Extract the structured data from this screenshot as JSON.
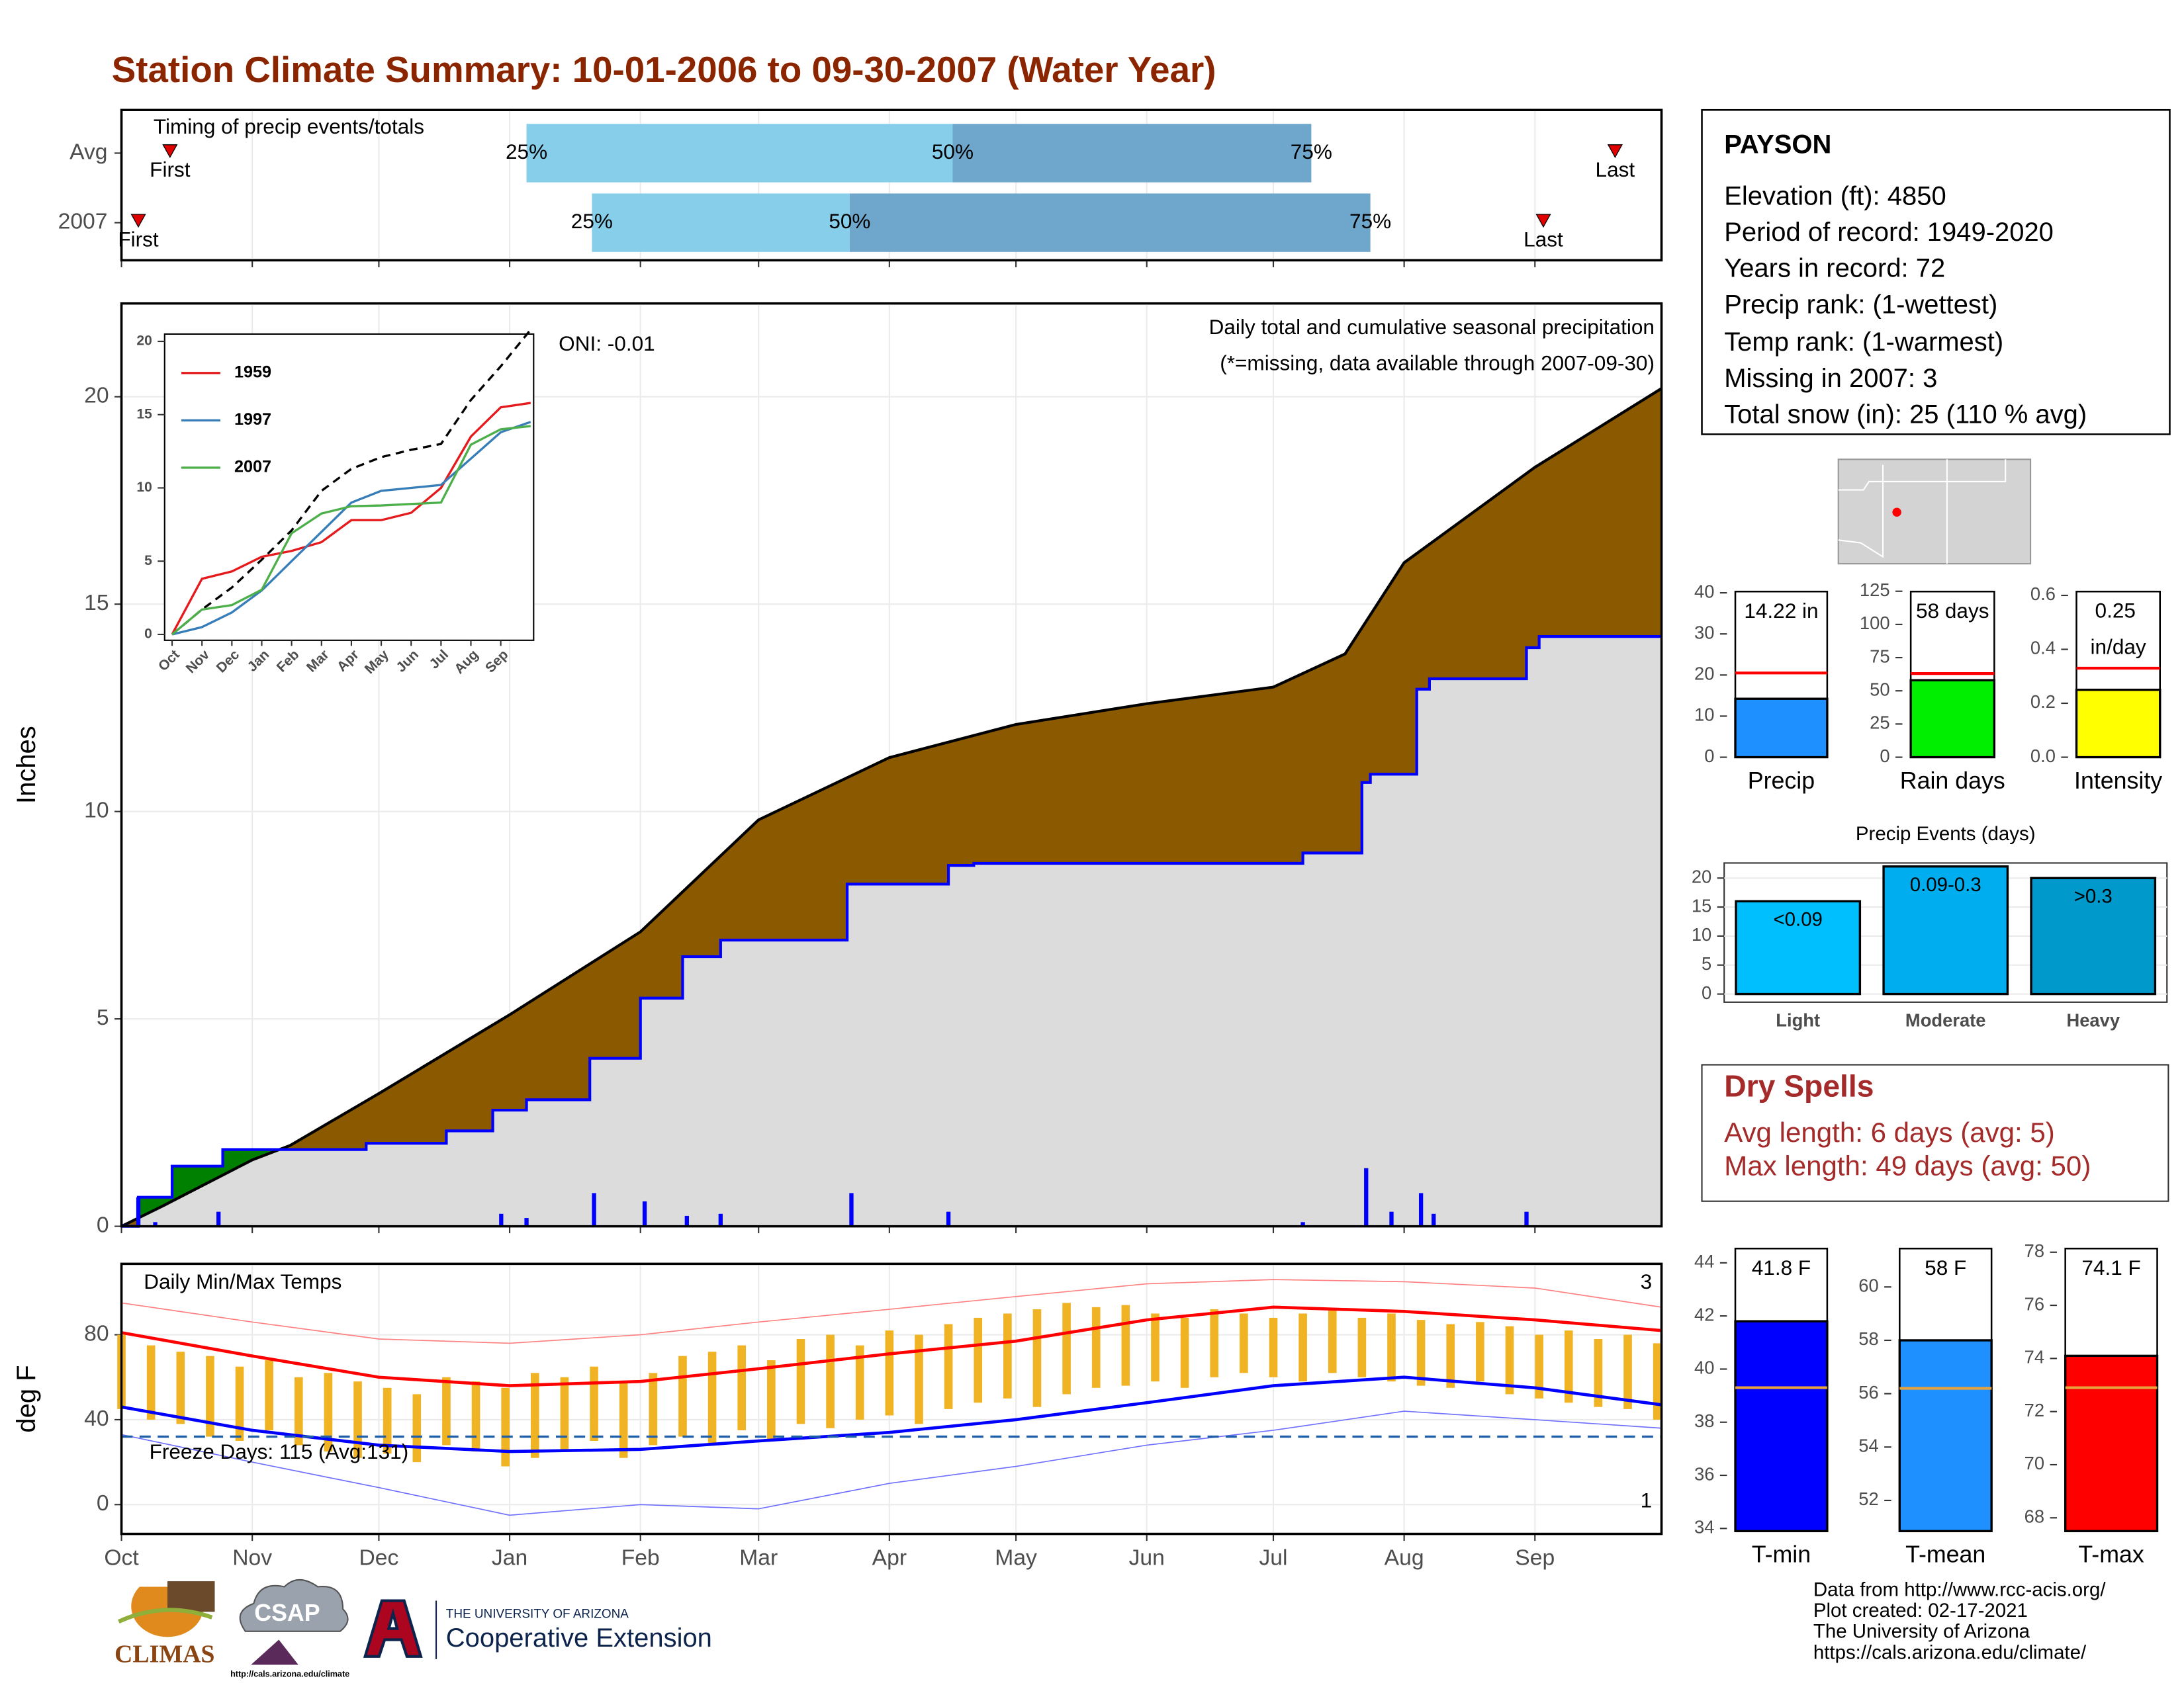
{
  "title": "Station Climate Summary: 10-01-2006 to 09-30-2007 (Water Year)",
  "chart_data": [
    {
      "type": "timing",
      "title": "Timing of precip events/totals",
      "categories": [
        "Avg",
        "2007"
      ],
      "xlim": [
        0,
        365
      ],
      "first": [
        11.5,
        4
      ],
      "q25": [
        96,
        111.5
      ],
      "q50": [
        197,
        172.6
      ],
      "q75": [
        282,
        296
      ],
      "last": [
        354,
        337
      ],
      "first_label": "First",
      "last_label": "Last",
      "quartile_labels": [
        "25%",
        "50%",
        "75%"
      ],
      "colors": [
        "#87ceeb",
        "#6fa6cc"
      ],
      "marker_color": "#e00000"
    },
    {
      "type": "area",
      "ylabel": "Inches",
      "xlim": [
        0,
        365
      ],
      "ylim": [
        0,
        22.25
      ],
      "yticks": [
        0,
        5,
        10,
        15,
        20
      ],
      "grid": true,
      "annotations": [
        "ONI: -0.01",
        "Daily total and cumulative seasonal precipitation",
        "(*=missing, data available through 2007-09-30)"
      ],
      "cumulative_avg": {
        "color": "#000000",
        "fill": "#8b5a00",
        "x": [
          0,
          10,
          31,
          40,
          61,
          92,
          123,
          151,
          182,
          212,
          243,
          273,
          290,
          304,
          335,
          365
        ],
        "values": [
          0,
          0.5,
          1.6,
          1.95,
          3.2,
          5.1,
          7.1,
          9.8,
          11.3,
          12.1,
          12.6,
          13.0,
          13.8,
          16.0,
          18.3,
          20.2
        ]
      },
      "cumulative_2007": {
        "color": "#0000ff",
        "fill": "#dcdcdc",
        "above_fill": "#008000",
        "x": [
          0,
          4,
          12,
          24,
          58,
          77,
          88,
          96,
          111,
          123,
          133,
          142,
          172,
          196,
          202,
          280,
          294,
          296,
          307,
          310,
          333,
          336,
          365
        ],
        "values": [
          0,
          0.7,
          1.45,
          1.85,
          2.0,
          2.3,
          2.8,
          3.05,
          4.05,
          5.5,
          6.5,
          6.9,
          8.25,
          8.7,
          8.75,
          9.0,
          10.7,
          10.9,
          12.95,
          13.2,
          13.95,
          14.22,
          14.22
        ]
      },
      "daily_precip": {
        "color": "#0000ff",
        "x": [
          4,
          8,
          23,
          90,
          96,
          112,
          124,
          134,
          142,
          173,
          196,
          280,
          295,
          301,
          308,
          311,
          333
        ],
        "values": [
          0.7,
          0.1,
          0.35,
          0.3,
          0.2,
          0.8,
          0.6,
          0.25,
          0.3,
          0.8,
          0.35,
          0.1,
          1.4,
          0.35,
          0.8,
          0.3,
          0.35
        ]
      }
    },
    {
      "type": "line",
      "xlim": [
        -0.25,
        12.1
      ],
      "ylim": [
        -0.4,
        20.5
      ],
      "yticks": [
        0,
        5,
        10,
        15,
        20
      ],
      "xticks": [
        {
          "value": 0,
          "label": "Oct"
        },
        {
          "value": 1,
          "label": "Nov"
        },
        {
          "value": 2,
          "label": "Dec"
        },
        {
          "value": 3,
          "label": "Jan"
        },
        {
          "value": 4,
          "label": "Feb"
        },
        {
          "value": 5,
          "label": "Mar"
        },
        {
          "value": 6,
          "label": "Apr"
        },
        {
          "value": 7,
          "label": "May"
        },
        {
          "value": 8,
          "label": "Jun"
        },
        {
          "value": 9,
          "label": "Jul"
        },
        {
          "value": 10,
          "label": "Aug"
        },
        {
          "value": 11,
          "label": "Sep"
        }
      ],
      "x": [
        0,
        1,
        2,
        3,
        4,
        5,
        6,
        7,
        8,
        9,
        10,
        11,
        12
      ],
      "series": [
        {
          "color": "#000000",
          "dash": true,
          "values": [
            0,
            1.7,
            3.2,
            5.1,
            7.1,
            9.8,
            11.3,
            12.1,
            12.6,
            13.0,
            16.0,
            18.3,
            20.8
          ]
        },
        {
          "name": "1959",
          "color": "#e41a1c",
          "values": [
            0,
            3.8,
            4.3,
            5.3,
            5.7,
            6.3,
            7.8,
            7.8,
            8.3,
            10.0,
            13.5,
            15.5,
            15.8
          ]
        },
        {
          "name": "1997",
          "color": "#377eb8",
          "values": [
            0,
            0.5,
            1.5,
            3.0,
            5.0,
            7.0,
            9.0,
            9.8,
            10.0,
            10.2,
            12.0,
            13.8,
            14.5
          ]
        },
        {
          "name": "2007",
          "color": "#4daf4a",
          "values": [
            0,
            1.7,
            2.0,
            3.05,
            6.9,
            8.25,
            8.75,
            8.8,
            8.9,
            9.0,
            12.95,
            14.0,
            14.22
          ]
        }
      ]
    },
    {
      "type": "bar",
      "categories": [
        "Precip"
      ],
      "values": [
        14.22
      ],
      "value_labels": [
        "14.22 in"
      ],
      "color": "#1e90ff",
      "avg_line": 20.5,
      "avg_color": "#ff0000",
      "ylim": [
        0,
        42
      ],
      "yticks": [
        0,
        10,
        20,
        30,
        40
      ]
    },
    {
      "type": "bar",
      "categories": [
        "Rain days"
      ],
      "values": [
        58
      ],
      "value_labels": [
        "58 days"
      ],
      "color": "#00ee00",
      "avg_line": 63,
      "avg_color": "#ff0000",
      "ylim": [
        0,
        130
      ],
      "yticks": [
        0,
        25,
        50,
        75,
        100,
        125
      ]
    },
    {
      "type": "bar",
      "categories": [
        "Intensity"
      ],
      "values": [
        0.25
      ],
      "value_labels": [
        "0.25 in/day"
      ],
      "color": "#ffff00",
      "avg_line": 0.33,
      "avg_color": "#ff0000",
      "ylim": [
        0,
        0.64
      ],
      "yticks": [
        {
          "value": 0,
          "label": "0.0"
        },
        0.2,
        0.4,
        0.6
      ]
    },
    {
      "type": "bar",
      "title": "Precip Events (days)",
      "categories": [
        "Light",
        "Moderate",
        "Heavy"
      ],
      "values": [
        16,
        22,
        20
      ],
      "bar_labels": [
        "<0.09",
        "0.09-0.3",
        ">0.3"
      ],
      "colors": [
        "#00bfff",
        "#00aeef",
        "#0099cc"
      ],
      "ylim": [
        -1.4,
        22.6
      ],
      "yticks": [
        0,
        5,
        10,
        15,
        20
      ],
      "grid": true
    },
    {
      "type": "range",
      "title": "Daily Min/Max Temps",
      "ylabel": "deg F",
      "xlim": [
        0,
        365
      ],
      "ylim": [
        -13.8,
        113.4
      ],
      "yticks": [
        0,
        40,
        80
      ],
      "grid": true,
      "xticks": [
        {
          "value": 0,
          "label": "Oct"
        },
        {
          "value": 31,
          "label": "Nov"
        },
        {
          "value": 61,
          "label": "Dec"
        },
        {
          "value": 92,
          "label": "Jan"
        },
        {
          "value": 123,
          "label": "Feb"
        },
        {
          "value": 151,
          "label": "Mar"
        },
        {
          "value": 182,
          "label": "Apr"
        },
        {
          "value": 212,
          "label": "May"
        },
        {
          "value": 243,
          "label": "Jun"
        },
        {
          "value": 273,
          "label": "Jul"
        },
        {
          "value": 304,
          "label": "Aug"
        },
        {
          "value": 335,
          "label": "Sep"
        }
      ],
      "daily": {
        "color": "#f0b323",
        "x": [
          0,
          7,
          14,
          21,
          28,
          35,
          42,
          49,
          56,
          63,
          70,
          77,
          84,
          91,
          98,
          105,
          112,
          119,
          126,
          133,
          140,
          147,
          154,
          161,
          168,
          175,
          182,
          189,
          196,
          203,
          210,
          217,
          224,
          231,
          238,
          245,
          252,
          259,
          266,
          273,
          280,
          287,
          294,
          301,
          308,
          315,
          322,
          329,
          336,
          343,
          350,
          357,
          364
        ],
        "low": [
          45,
          40,
          38,
          32,
          30,
          35,
          28,
          25,
          22,
          24,
          20,
          28,
          25,
          18,
          22,
          26,
          30,
          22,
          28,
          32,
          28,
          35,
          30,
          38,
          36,
          40,
          42,
          38,
          45,
          48,
          50,
          46,
          52,
          55,
          56,
          58,
          55,
          60,
          62,
          60,
          58,
          62,
          60,
          58,
          56,
          55,
          58,
          52,
          50,
          48,
          46,
          45,
          40
        ],
        "high": [
          80,
          75,
          72,
          70,
          65,
          68,
          60,
          62,
          58,
          55,
          52,
          60,
          58,
          55,
          62,
          60,
          65,
          58,
          62,
          70,
          72,
          75,
          68,
          78,
          80,
          75,
          82,
          80,
          85,
          88,
          90,
          92,
          95,
          93,
          94,
          90,
          88,
          92,
          90,
          88,
          90,
          92,
          88,
          90,
          87,
          85,
          86,
          84,
          80,
          82,
          78,
          80,
          76
        ]
      },
      "series": [
        {
          "color": "#ff0000",
          "width": 2.2,
          "x": [
            0,
            31,
            61,
            92,
            123,
            151,
            182,
            212,
            243,
            273,
            304,
            335,
            365
          ],
          "values": [
            81,
            70,
            60,
            56,
            58,
            64,
            71,
            77,
            87,
            93,
            91,
            87,
            82
          ]
        },
        {
          "color": "#0000ff",
          "width": 2.2,
          "x": [
            0,
            31,
            61,
            92,
            123,
            151,
            182,
            212,
            243,
            273,
            304,
            335,
            365
          ],
          "values": [
            46,
            35,
            28,
            25,
            26,
            30,
            34,
            40,
            48,
            56,
            60,
            55,
            47
          ]
        },
        {
          "color": "#ff8080",
          "width": 0.8,
          "x": [
            0,
            31,
            61,
            92,
            123,
            151,
            182,
            212,
            243,
            273,
            304,
            335,
            365
          ],
          "values": [
            95,
            86,
            78,
            76,
            80,
            86,
            92,
            98,
            104,
            106,
            105,
            102,
            93
          ]
        },
        {
          "color": "#7070ff",
          "width": 0.8,
          "x": [
            0,
            31,
            61,
            92,
            123,
            151,
            182,
            212,
            243,
            273,
            304,
            335,
            365
          ],
          "values": [
            33,
            20,
            8,
            -5,
            0,
            -2,
            10,
            18,
            28,
            35,
            44,
            40,
            36
          ]
        }
      ],
      "freeze_line": 32,
      "freeze_color": "#1f5ea8",
      "freeze_label": "Freeze Days: 115 (Avg:131)",
      "record_highs": 3,
      "record_lows": 1
    },
    {
      "type": "bar",
      "categories": [
        "T-min"
      ],
      "values": [
        41.8
      ],
      "value_labels": [
        "41.8 F"
      ],
      "color": "#0000ff",
      "avg_line": 39.3,
      "avg_color": "#e6a23c",
      "ylim": [
        33.9,
        44.8
      ],
      "yticks": [
        34,
        36,
        38,
        40,
        42,
        44
      ]
    },
    {
      "type": "bar",
      "categories": [
        "T-mean"
      ],
      "values": [
        58
      ],
      "value_labels": [
        "58 F"
      ],
      "color": "#1e90ff",
      "avg_line": 56.2,
      "avg_color": "#e6a23c",
      "ylim": [
        50.85,
        61.7
      ],
      "yticks": [
        52,
        54,
        56,
        58,
        60
      ]
    },
    {
      "type": "bar",
      "categories": [
        "T-max"
      ],
      "values": [
        74.1
      ],
      "value_labels": [
        "74.1 F"
      ],
      "color": "#ff0000",
      "avg_line": 72.9,
      "avg_color": "#e6a23c",
      "ylim": [
        67.5,
        78.4
      ],
      "yticks": [
        68,
        70,
        72,
        74,
        76,
        78
      ]
    }
  ],
  "station": {
    "name": "PAYSON",
    "lines": [
      "Elevation (ft): 4850",
      "Period of record: 1949-2020",
      "Years in record: 72",
      "Precip rank:  (1-wettest)",
      "Temp rank:  (1-warmest)",
      "Missing in 2007: 3",
      "Total snow (in): 25 (110 % avg)"
    ]
  },
  "dry_spells": {
    "title": "Dry Spells",
    "lines": [
      "Avg length: 6 days (avg: 5)",
      "Max length: 49 days (avg: 50)"
    ]
  },
  "footer": [
    "Data from http://www.rcc-acis.org/",
    "Plot created: 02-17-2021",
    "The University of Arizona",
    "https://cals.arizona.edu/climate/"
  ],
  "logos": {
    "climas": "CLIMAS",
    "csap": "CSAP",
    "csap_url": "http://cals.arizona.edu/climate",
    "university": "THE UNIVERSITY OF ARIZONA",
    "extension": "Cooperative Extension"
  }
}
